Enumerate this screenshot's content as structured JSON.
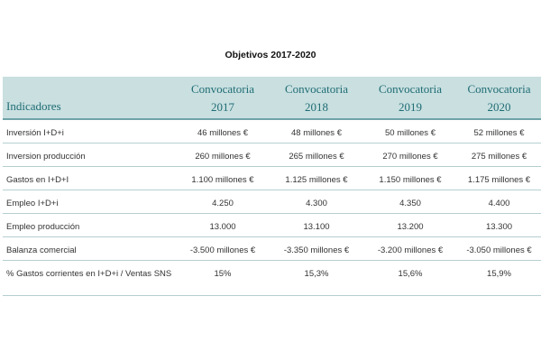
{
  "title": "Objetivos 2017-2020",
  "header": {
    "indicadores": "Indicadores",
    "cols": [
      {
        "line1": "Convocatoria",
        "line2": "2017"
      },
      {
        "line1": "Convocatoria",
        "line2": "2018"
      },
      {
        "line1": "Convocatoria",
        "line2": "2019"
      },
      {
        "line1": "Convocatoria",
        "line2": "2020"
      }
    ]
  },
  "rows": [
    {
      "label": "Inversión I+D+i",
      "values": [
        "46 millones €",
        "48 millones €",
        "50 millones €",
        "52 millones €"
      ]
    },
    {
      "label": "Inversion producción",
      "values": [
        "260 millones €",
        "265 millones €",
        "270 millones €",
        "275 millones €"
      ]
    },
    {
      "label": "Gastos en I+D+I",
      "values": [
        "1.100 millones €",
        "1.125 millones €",
        "1.150 millones €",
        "1.175 millones €"
      ]
    },
    {
      "label": "Empleo I+D+i",
      "values": [
        "4.250",
        "4.300",
        "4.350",
        "4.400"
      ]
    },
    {
      "label": "Empleo producción",
      "values": [
        "13.000",
        "13.100",
        "13.200",
        "13.300"
      ]
    },
    {
      "label": "Balanza comercial",
      "values": [
        "-3.500 millones €",
        "-3.350 millones €",
        "-3.200 millones €",
        "-3.050 millones €"
      ]
    },
    {
      "label": "% Gastos corrientes en I+D+i / Ventas SNS",
      "values": [
        "15%",
        "15,3%",
        "15,6%",
        "15,9%"
      ]
    }
  ]
}
